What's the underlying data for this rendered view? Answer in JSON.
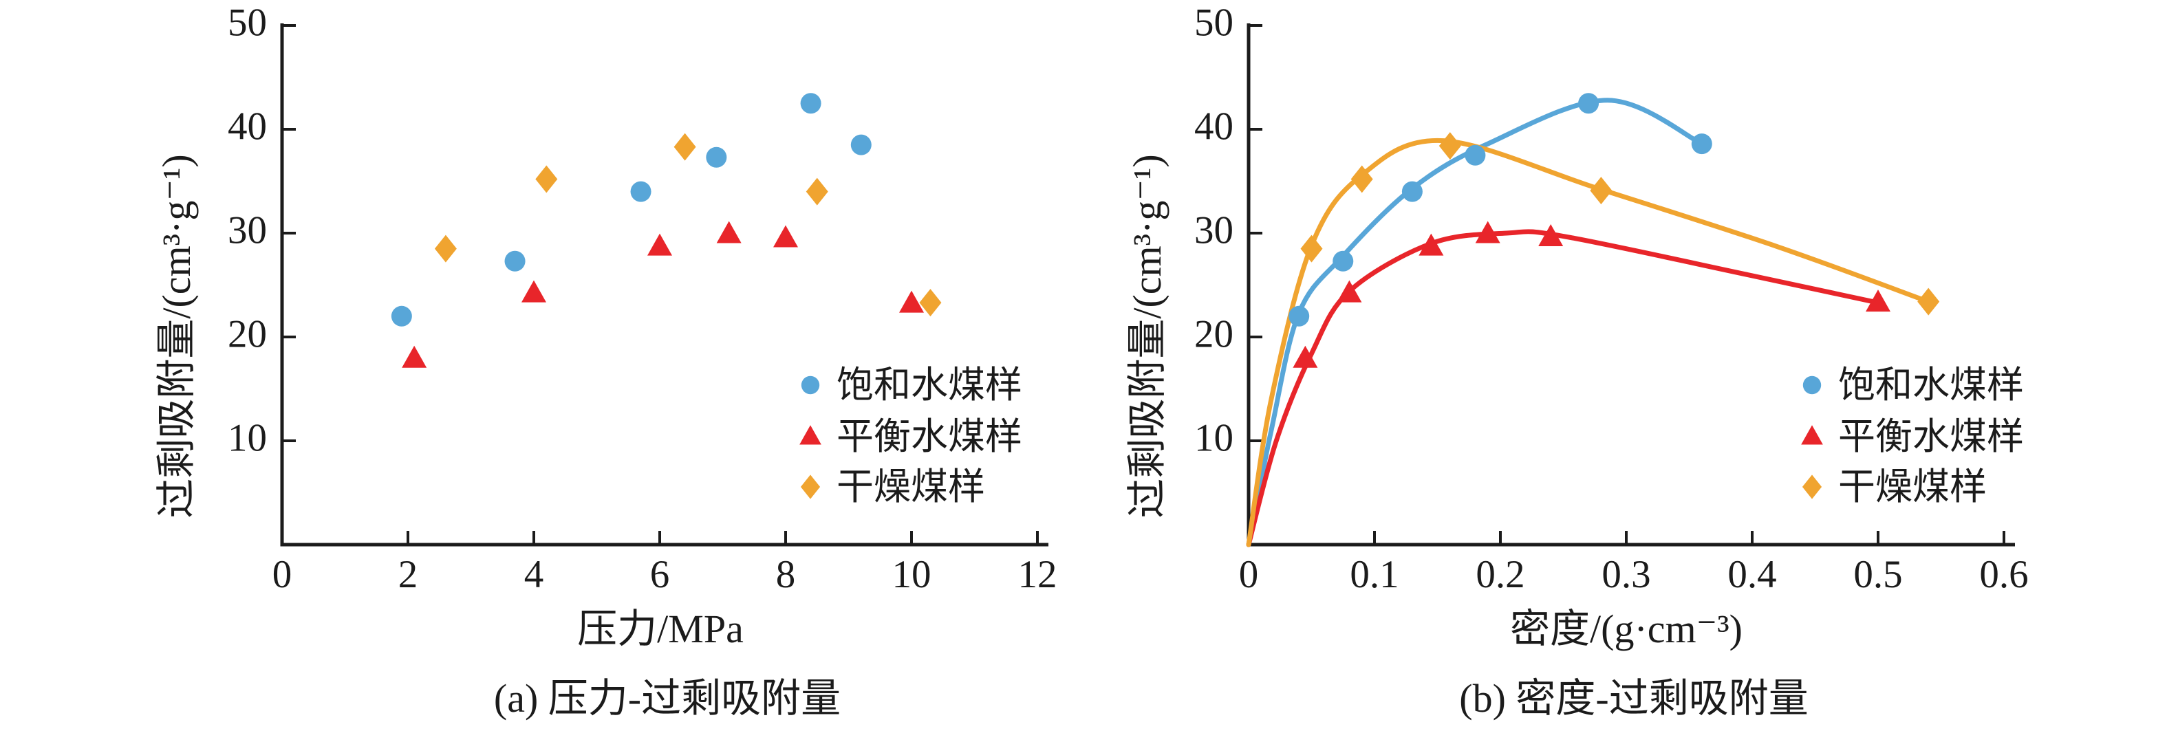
{
  "figure": {
    "background": "#ffffff",
    "ink_color": "#1b1b1b",
    "series_colors": {
      "saturated": "#58a6d8",
      "equilibrium": "#e8252a",
      "dry": "#f0a430"
    }
  },
  "legend_items": [
    {
      "label": "饱和水煤样",
      "marker": "circle",
      "color": "#58a6d8"
    },
    {
      "label": "平衡水煤样",
      "marker": "triangle",
      "color": "#e8252a"
    },
    {
      "label": "干燥煤样",
      "marker": "diamond",
      "color": "#f0a430"
    }
  ],
  "chart_data": [
    {
      "panel": "a",
      "type": "scatter",
      "caption": "(a) 压力-过剩吸附量",
      "xlabel": "压力/MPa",
      "ylabel": "过剩吸附量/(cm³·g⁻¹)",
      "xlim": [
        0,
        12
      ],
      "ylim": [
        0,
        50
      ],
      "xticks": [
        0,
        2,
        4,
        6,
        8,
        10,
        12
      ],
      "xtick_labels": [
        "0",
        "2",
        "4",
        "6",
        "8",
        "10",
        "12"
      ],
      "yticks": [
        10,
        20,
        30,
        40,
        50
      ],
      "ytick_labels": [
        "10",
        "20",
        "30",
        "40",
        "50"
      ],
      "grid": false,
      "legend_position": "lower right",
      "series": [
        {
          "name": "饱和水煤样",
          "marker": "circle",
          "color": "#58a6d8",
          "points": [
            [
              1.9,
              22.0
            ],
            [
              3.7,
              27.3
            ],
            [
              5.7,
              34.0
            ],
            [
              6.9,
              37.3
            ],
            [
              8.4,
              42.5
            ],
            [
              9.2,
              38.5
            ]
          ]
        },
        {
          "name": "平衡水煤样",
          "marker": "triangle",
          "color": "#e8252a",
          "points": [
            [
              2.1,
              17.9
            ],
            [
              4.0,
              24.2
            ],
            [
              6.0,
              28.7
            ],
            [
              7.1,
              29.9
            ],
            [
              8.0,
              29.5
            ],
            [
              10.0,
              23.2
            ]
          ]
        },
        {
          "name": "干燥煤样",
          "marker": "diamond",
          "color": "#f0a430",
          "points": [
            [
              2.6,
              28.5
            ],
            [
              4.2,
              35.2
            ],
            [
              6.4,
              38.3
            ],
            [
              8.5,
              34.0
            ],
            [
              10.3,
              23.3
            ]
          ]
        }
      ]
    },
    {
      "panel": "b",
      "type": "scatter",
      "has_fit_curves": true,
      "caption": "(b) 密度-过剩吸附量",
      "xlabel": "密度/(g·cm⁻³)",
      "ylabel": "过剩吸附量/(cm³·g⁻¹)",
      "xlim": [
        0,
        0.6
      ],
      "ylim": [
        0,
        50
      ],
      "xticks": [
        0,
        0.1,
        0.2,
        0.3,
        0.4,
        0.5,
        0.6
      ],
      "xtick_labels": [
        "0",
        "0.1",
        "0.2",
        "0.3",
        "0.4",
        "0.5",
        "0.6"
      ],
      "yticks": [
        10,
        20,
        30,
        40,
        50
      ],
      "ytick_labels": [
        "10",
        "20",
        "30",
        "40",
        "50"
      ],
      "grid": false,
      "legend_position": "lower right",
      "series": [
        {
          "name": "饱和水煤样",
          "marker": "circle",
          "color": "#58a6d8",
          "points": [
            [
              0.04,
              22.0
            ],
            [
              0.075,
              27.3
            ],
            [
              0.13,
              34.0
            ],
            [
              0.18,
              37.5
            ],
            [
              0.27,
              42.5
            ],
            [
              0.36,
              38.6
            ]
          ],
          "fit_curve": [
            [
              0,
              0
            ],
            [
              0.018,
              11
            ],
            [
              0.04,
              22.3
            ],
            [
              0.075,
              27.8
            ],
            [
              0.13,
              34.3
            ],
            [
              0.19,
              38.6
            ],
            [
              0.285,
              42.8
            ],
            [
              0.36,
              38.6
            ]
          ]
        },
        {
          "name": "平衡水煤样",
          "marker": "triangle",
          "color": "#e8252a",
          "points": [
            [
              0.045,
              17.9
            ],
            [
              0.08,
              24.2
            ],
            [
              0.145,
              28.7
            ],
            [
              0.19,
              29.9
            ],
            [
              0.24,
              29.6
            ],
            [
              0.5,
              23.3
            ]
          ],
          "fit_curve": [
            [
              0,
              0
            ],
            [
              0.022,
              10
            ],
            [
              0.05,
              18.4
            ],
            [
              0.08,
              24.4
            ],
            [
              0.145,
              29.0
            ],
            [
              0.205,
              30.0
            ],
            [
              0.25,
              29.7
            ],
            [
              0.4,
              25.9
            ],
            [
              0.5,
              23.3
            ]
          ]
        },
        {
          "name": "干燥煤样",
          "marker": "diamond",
          "color": "#f0a430",
          "points": [
            [
              0.05,
              28.5
            ],
            [
              0.09,
              35.2
            ],
            [
              0.16,
              38.4
            ],
            [
              0.28,
              34.1
            ],
            [
              0.54,
              23.4
            ]
          ],
          "fit_curve": [
            [
              0,
              0
            ],
            [
              0.018,
              14
            ],
            [
              0.05,
              28.8
            ],
            [
              0.09,
              35.6
            ],
            [
              0.155,
              38.9
            ],
            [
              0.28,
              34.2
            ],
            [
              0.42,
              28.7
            ],
            [
              0.54,
              23.4
            ]
          ]
        }
      ]
    }
  ]
}
